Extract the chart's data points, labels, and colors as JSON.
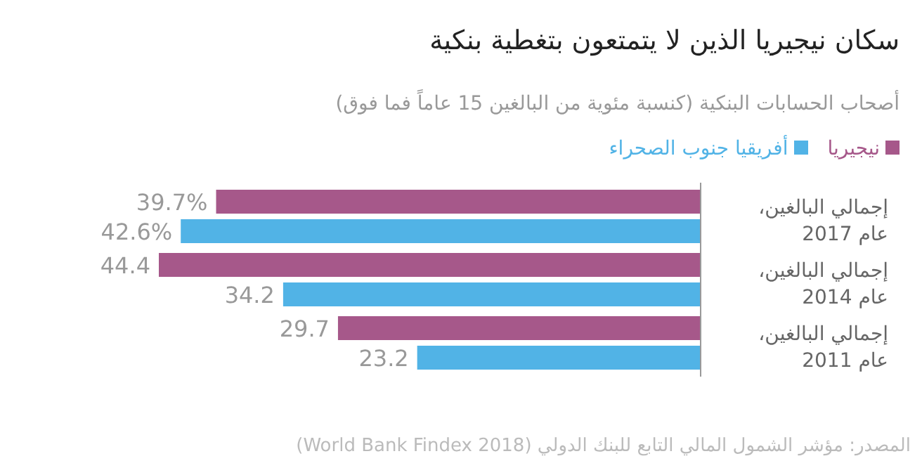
{
  "chart_data": {
    "type": "bar",
    "orientation": "horizontal",
    "title": "سكان نيجيريا الذين لا يتمتعون بتغطية بنكية",
    "subtitle": "أصحاب الحسابات البنكية (كنسبة مئوية من البالغين  15 عاماً فما فوق)",
    "categories": [
      "إجمالي البالغين، عام 2017",
      "إجمالي البالغين، عام 2014",
      "إجمالي البالغين، عام 2011"
    ],
    "series": [
      {
        "name": "نيجيريا",
        "color": "#a6588a",
        "values": [
          39.7,
          44.4,
          29.7
        ],
        "value_labels": [
          "39.7%",
          "44.4",
          "29.7"
        ]
      },
      {
        "name": "أفريقيا جنوب الصحراء",
        "color": "#51b3e6",
        "values": [
          42.6,
          34.2,
          23.2
        ],
        "value_labels": [
          "42.6%",
          "34.2",
          "23.2"
        ]
      }
    ],
    "legend": "top right",
    "annotations": [
      "المصدر: مؤشر الشمول المالي التابع للبنك الدولي (World Bank Findex 2018)"
    ]
  }
}
